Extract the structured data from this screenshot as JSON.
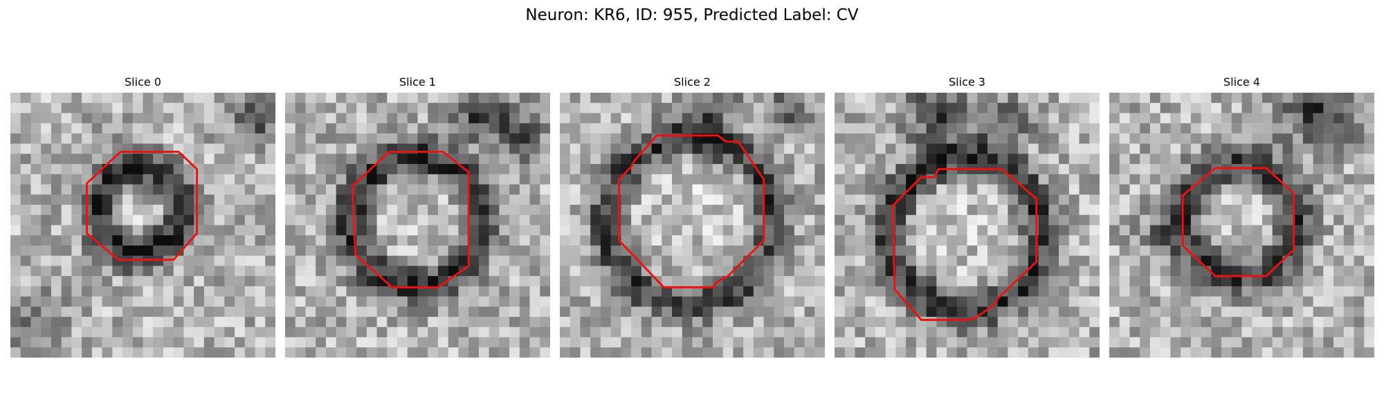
{
  "figure": {
    "title": "Neuron: KR6, ID: 955, Predicted Label: CV",
    "contour_color": "#ee1111",
    "colormap": "gray",
    "grid_size": 26
  },
  "panels": [
    {
      "title": "Slice 0",
      "dark_ring": {
        "cx": 12.7,
        "cy": 11.6,
        "r": 4.2,
        "width": 1.8,
        "depth": 0.55
      },
      "dark_blobs": [
        {
          "x": 24.5,
          "y": 2.5,
          "r": 2.6,
          "d": 0.35
        },
        {
          "x": 2.5,
          "y": 23.0,
          "r": 2.8,
          "d": 0.3
        }
      ],
      "contour": [
        [
          10.8,
          5.8
        ],
        [
          16.5,
          5.8
        ],
        [
          18.3,
          7.5
        ],
        [
          18.3,
          13.8
        ],
        [
          16.0,
          16.4
        ],
        [
          10.6,
          16.4
        ],
        [
          7.5,
          13.8
        ],
        [
          7.5,
          8.9
        ]
      ]
    },
    {
      "title": "Slice 1",
      "dark_ring": {
        "cx": 12.8,
        "cy": 12.6,
        "r": 6.3,
        "width": 1.9,
        "depth": 0.5
      },
      "dark_blobs": [
        {
          "x": 19.5,
          "y": 2.0,
          "r": 3.0,
          "d": 0.45
        },
        {
          "x": 23.5,
          "y": 4.5,
          "r": 2.2,
          "d": 0.3
        }
      ],
      "contour": [
        [
          10.2,
          5.8
        ],
        [
          15.5,
          5.8
        ],
        [
          18.0,
          7.8
        ],
        [
          18.0,
          17.0
        ],
        [
          15.0,
          19.1
        ],
        [
          10.5,
          19.1
        ],
        [
          6.9,
          15.9
        ],
        [
          6.6,
          9.2
        ]
      ]
    },
    {
      "title": "Slice 2",
      "dark_ring": {
        "cx": 12.8,
        "cy": 12.6,
        "r": 8.2,
        "width": 1.8,
        "depth": 0.45
      },
      "dark_blobs": [
        {
          "x": 14.5,
          "y": 1.5,
          "r": 3.0,
          "d": 0.3
        },
        {
          "x": 22.5,
          "y": 1.5,
          "r": 2.2,
          "d": 0.3
        }
      ],
      "contour": [
        [
          9.5,
          4.2
        ],
        [
          15.5,
          4.2
        ],
        [
          16.3,
          4.8
        ],
        [
          17.5,
          4.8
        ],
        [
          20.0,
          8.5
        ],
        [
          20.0,
          14.5
        ],
        [
          16.5,
          18.0
        ],
        [
          15.5,
          18.5
        ],
        [
          15.0,
          19.1
        ],
        [
          10.2,
          19.1
        ],
        [
          5.8,
          14.5
        ],
        [
          5.8,
          8.5
        ],
        [
          7.0,
          7.3
        ],
        [
          7.3,
          6.7
        ]
      ]
    },
    {
      "title": "Slice 3",
      "dark_ring": {
        "cx": 12.8,
        "cy": 13.9,
        "r": 7.4,
        "width": 1.9,
        "depth": 0.5
      },
      "dark_blobs": [
        {
          "x": 10.0,
          "y": 2.0,
          "r": 3.2,
          "d": 0.4
        },
        {
          "x": 16.5,
          "y": 3.0,
          "r": 2.6,
          "d": 0.35
        }
      ],
      "contour": [
        [
          10.2,
          7.5
        ],
        [
          16.4,
          7.5
        ],
        [
          19.8,
          10.4
        ],
        [
          19.8,
          16.6
        ],
        [
          16.0,
          20.2
        ],
        [
          15.6,
          20.9
        ],
        [
          13.8,
          22.1
        ],
        [
          13.0,
          22.3
        ],
        [
          8.5,
          22.3
        ],
        [
          5.9,
          19.3
        ],
        [
          5.7,
          11.1
        ],
        [
          8.5,
          8.3
        ],
        [
          9.8,
          8.3
        ]
      ]
    },
    {
      "title": "Slice 4",
      "dark_ring": {
        "cx": 12.8,
        "cy": 12.6,
        "r": 5.5,
        "width": 1.9,
        "depth": 0.45
      },
      "dark_blobs": [
        {
          "x": 20.5,
          "y": 1.5,
          "r": 3.8,
          "d": 0.5
        },
        {
          "x": 5.0,
          "y": 14.0,
          "r": 2.2,
          "d": 0.22
        }
      ],
      "contour": [
        [
          10.4,
          7.4
        ],
        [
          15.4,
          7.4
        ],
        [
          18.1,
          9.9
        ],
        [
          18.1,
          15.4
        ],
        [
          15.4,
          18.0
        ],
        [
          10.4,
          18.0
        ],
        [
          7.2,
          15.0
        ],
        [
          7.2,
          10.1
        ]
      ]
    }
  ]
}
